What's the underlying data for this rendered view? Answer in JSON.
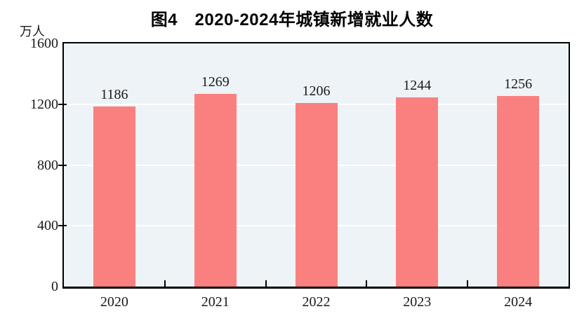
{
  "page": {
    "background": "#ffffff"
  },
  "chart_data": {
    "type": "bar",
    "title": "图4　2020-2024年城镇新增就业人数",
    "unit_label": "万人",
    "categories": [
      "2020",
      "2021",
      "2022",
      "2023",
      "2024"
    ],
    "values": [
      1186,
      1269,
      1206,
      1244,
      1256
    ],
    "data_labels": [
      "1186",
      "1269",
      "1206",
      "1244",
      "1256"
    ],
    "xlabel": "",
    "ylabel": "万人",
    "ylim": [
      0,
      1600
    ],
    "yticks": [
      0,
      400,
      800,
      1200,
      1600
    ],
    "grid": true,
    "gridline_color": "#ffffff",
    "legend": "none",
    "bar_color": "#fa8080",
    "plot_background": "#edf3f6",
    "axis_color": "#000000",
    "text_color": "#1a1a1a"
  }
}
